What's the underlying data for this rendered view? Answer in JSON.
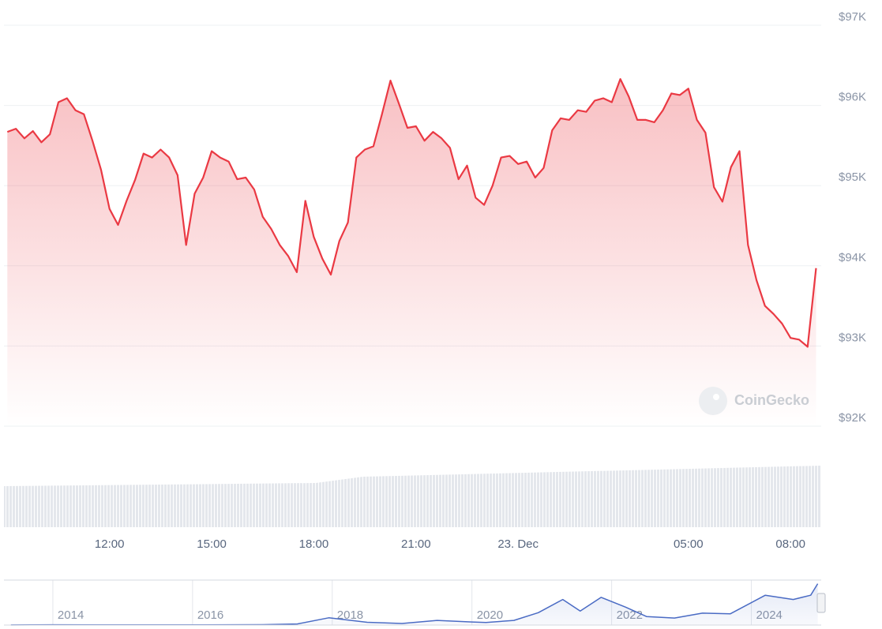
{
  "chart_data": [
    {
      "type": "line",
      "color": "#ea3943",
      "grid": "y",
      "watermark": "CoinGecko",
      "xlim": [
        8.9,
        32.9
      ],
      "ylim": [
        92000,
        97000
      ],
      "xticks": [
        {
          "value": 12,
          "label": "12:00"
        },
        {
          "value": 15,
          "label": "15:00"
        },
        {
          "value": 18,
          "label": "18:00"
        },
        {
          "value": 21,
          "label": "21:00"
        },
        {
          "value": 24,
          "label": "23. Dec"
        },
        {
          "value": 29,
          "label": "05:00"
        },
        {
          "value": 32,
          "label": "08:00"
        }
      ],
      "yticks": [
        {
          "value": 92000,
          "label": "$92K"
        },
        {
          "value": 93000,
          "label": "$93K"
        },
        {
          "value": 94000,
          "label": "$94K"
        },
        {
          "value": 95000,
          "label": "$95K"
        },
        {
          "value": 96000,
          "label": "$96K"
        },
        {
          "value": 97000,
          "label": "$97K"
        }
      ],
      "x": [
        9,
        9.25,
        9.5,
        9.75,
        10,
        10.25,
        10.5,
        10.75,
        11,
        11.25,
        11.5,
        11.75,
        12,
        12.25,
        12.5,
        12.75,
        13,
        13.25,
        13.5,
        13.75,
        14,
        14.25,
        14.5,
        14.75,
        15,
        15.25,
        15.5,
        15.75,
        16,
        16.25,
        16.5,
        16.75,
        17,
        17.25,
        17.5,
        17.75,
        18,
        18.25,
        18.5,
        18.75,
        19,
        19.25,
        19.5,
        19.75,
        20,
        20.25,
        20.5,
        20.75,
        21,
        21.25,
        21.5,
        21.75,
        22,
        22.25,
        22.5,
        22.75,
        23,
        23.25,
        23.5,
        23.75,
        24,
        24.25,
        24.5,
        24.75,
        25,
        25.25,
        25.5,
        25.75,
        26,
        26.25,
        26.5,
        26.75,
        27,
        27.25,
        27.5,
        27.75,
        28,
        28.25,
        28.5,
        28.75,
        29,
        29.25,
        29.5,
        29.75,
        30,
        30.25,
        30.5,
        30.75,
        31,
        31.25,
        31.5,
        31.75,
        32,
        32.25,
        32.5,
        32.75
      ],
      "values": [
        95670,
        95710,
        95590,
        95680,
        95540,
        95640,
        96040,
        96090,
        95940,
        95890,
        95560,
        95200,
        94710,
        94510,
        94810,
        95070,
        95400,
        95350,
        95450,
        95350,
        95130,
        94260,
        94900,
        95100,
        95430,
        95350,
        95300,
        95080,
        95100,
        94950,
        94610,
        94460,
        94260,
        94120,
        93920,
        94810,
        94360,
        94090,
        93890,
        94310,
        94540,
        95350,
        95450,
        95490,
        95890,
        96310,
        96020,
        95720,
        95740,
        95560,
        95670,
        95590,
        95470,
        95080,
        95250,
        94850,
        94760,
        95000,
        95350,
        95370,
        95270,
        95300,
        95100,
        95220,
        95690,
        95840,
        95820,
        95940,
        95920,
        96060,
        96090,
        96040,
        96330,
        96110,
        95820,
        95820,
        95790,
        95940,
        96150,
        96130,
        96210,
        95820,
        95660,
        94980,
        94800,
        95230,
        95430,
        94260,
        93820,
        93500,
        93400,
        93280,
        93100,
        93080,
        92990,
        93970
      ]
    },
    {
      "type": "line",
      "color": "#4a6bc4",
      "grid": "x",
      "xlim": [
        2013.3,
        2025
      ],
      "ylim": [
        0,
        100000
      ],
      "xticks": [
        2014,
        2016,
        2018,
        2020,
        2022,
        2024
      ],
      "x": [
        2013.4,
        2014,
        2015,
        2016,
        2017,
        2017.5,
        2017.95,
        2018.5,
        2019,
        2019.5,
        2020,
        2020.2,
        2020.6,
        2020.95,
        2021.3,
        2021.55,
        2021.85,
        2022.2,
        2022.5,
        2022.9,
        2023.3,
        2023.7,
        2024.2,
        2024.6,
        2024.85,
        2024.95
      ],
      "values": [
        100,
        800,
        300,
        430,
        1000,
        2500,
        17000,
        6500,
        3700,
        11000,
        7200,
        6000,
        11000,
        29000,
        60000,
        33000,
        65000,
        42000,
        20000,
        16500,
        28000,
        26500,
        70000,
        60000,
        70000,
        97000
      ]
    }
  ]
}
